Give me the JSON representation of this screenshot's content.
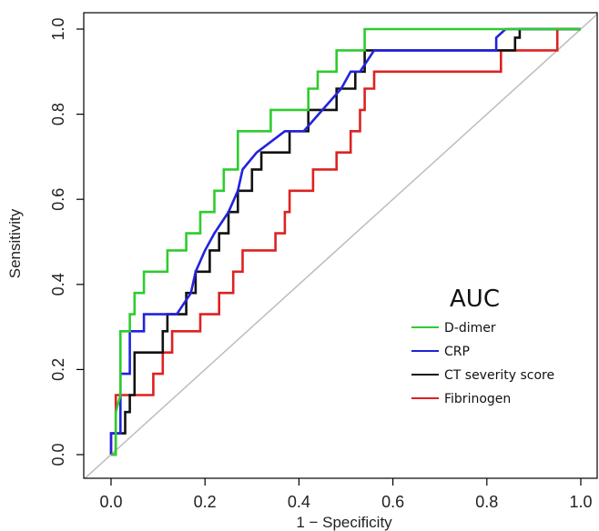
{
  "chart_data": {
    "type": "line",
    "title": "",
    "xlabel": "1 − Specificity",
    "ylabel": "Sensitivity",
    "xlim": [
      0.0,
      1.0
    ],
    "ylim": [
      0.0,
      1.0
    ],
    "x_ticks": [
      "0.0",
      "0.2",
      "0.4",
      "0.6",
      "0.8",
      "1.0"
    ],
    "y_ticks": [
      "0.0",
      "0.2",
      "0.4",
      "0.6",
      "0.8",
      "1.0"
    ],
    "grid": false,
    "legend_title": "AUC",
    "legend_position": "bottom-right",
    "reference_line": {
      "color": "#bdbdbd",
      "x": [
        0.0,
        1.0
      ],
      "y": [
        0.0,
        1.0
      ]
    },
    "series": [
      {
        "name": "D-dimer",
        "color": "#2ecc2e",
        "x": [
          0.0,
          0.01,
          0.01,
          0.02,
          0.02,
          0.04,
          0.04,
          0.05,
          0.05,
          0.07,
          0.07,
          0.12,
          0.12,
          0.16,
          0.16,
          0.19,
          0.19,
          0.22,
          0.22,
          0.24,
          0.24,
          0.27,
          0.27,
          0.34,
          0.34,
          0.42,
          0.42,
          0.44,
          0.44,
          0.48,
          0.48,
          0.54,
          0.54,
          1.0
        ],
        "y": [
          0.0,
          0.0,
          0.1,
          0.14,
          0.29,
          0.29,
          0.33,
          0.33,
          0.38,
          0.38,
          0.43,
          0.43,
          0.48,
          0.48,
          0.52,
          0.52,
          0.57,
          0.57,
          0.62,
          0.62,
          0.67,
          0.67,
          0.76,
          0.76,
          0.81,
          0.81,
          0.86,
          0.86,
          0.9,
          0.9,
          0.95,
          0.95,
          1.0,
          1.0
        ]
      },
      {
        "name": "CRP",
        "color": "#2222dd",
        "x": [
          0.0,
          0.0,
          0.02,
          0.02,
          0.04,
          0.04,
          0.07,
          0.07,
          0.14,
          0.17,
          0.18,
          0.2,
          0.22,
          0.25,
          0.27,
          0.28,
          0.31,
          0.37,
          0.41,
          0.45,
          0.49,
          0.51,
          0.53,
          0.56,
          0.82,
          0.82,
          0.84,
          1.0
        ],
        "y": [
          0.0,
          0.05,
          0.05,
          0.19,
          0.19,
          0.29,
          0.29,
          0.33,
          0.33,
          0.38,
          0.43,
          0.48,
          0.52,
          0.57,
          0.62,
          0.67,
          0.71,
          0.76,
          0.76,
          0.81,
          0.86,
          0.9,
          0.9,
          0.95,
          0.95,
          0.98,
          1.0,
          1.0
        ]
      },
      {
        "name": "CT severity score",
        "color": "#111111",
        "x": [
          0.0,
          0.01,
          0.01,
          0.02,
          0.02,
          0.03,
          0.03,
          0.04,
          0.04,
          0.05,
          0.05,
          0.11,
          0.11,
          0.12,
          0.12,
          0.16,
          0.16,
          0.18,
          0.18,
          0.21,
          0.21,
          0.23,
          0.23,
          0.25,
          0.25,
          0.27,
          0.27,
          0.3,
          0.3,
          0.32,
          0.32,
          0.34,
          0.34,
          0.38,
          0.38,
          0.42,
          0.42,
          0.48,
          0.48,
          0.52,
          0.52,
          0.54,
          0.54,
          0.86,
          0.86,
          0.87,
          0.87,
          1.0
        ],
        "y": [
          0.0,
          0.0,
          0.05,
          0.05,
          0.05,
          0.05,
          0.1,
          0.1,
          0.14,
          0.14,
          0.24,
          0.24,
          0.29,
          0.29,
          0.33,
          0.33,
          0.38,
          0.38,
          0.43,
          0.43,
          0.48,
          0.48,
          0.52,
          0.52,
          0.57,
          0.57,
          0.62,
          0.62,
          0.67,
          0.67,
          0.71,
          0.71,
          0.71,
          0.71,
          0.76,
          0.76,
          0.81,
          0.81,
          0.86,
          0.86,
          0.9,
          0.9,
          0.95,
          0.95,
          0.98,
          0.98,
          1.0,
          1.0
        ]
      },
      {
        "name": "Fibrinogen",
        "color": "#dd2222",
        "x": [
          0.0,
          0.0,
          0.01,
          0.01,
          0.09,
          0.09,
          0.11,
          0.11,
          0.13,
          0.13,
          0.19,
          0.19,
          0.23,
          0.23,
          0.26,
          0.26,
          0.28,
          0.28,
          0.3,
          0.3,
          0.35,
          0.35,
          0.37,
          0.37,
          0.38,
          0.38,
          0.41,
          0.41,
          0.43,
          0.43,
          0.48,
          0.48,
          0.51,
          0.51,
          0.53,
          0.53,
          0.54,
          0.54,
          0.56,
          0.56,
          0.83,
          0.83,
          0.95,
          0.95,
          1.0
        ],
        "y": [
          0.0,
          0.05,
          0.05,
          0.14,
          0.14,
          0.19,
          0.19,
          0.24,
          0.24,
          0.29,
          0.29,
          0.33,
          0.33,
          0.38,
          0.38,
          0.43,
          0.43,
          0.48,
          0.48,
          0.48,
          0.48,
          0.52,
          0.52,
          0.57,
          0.57,
          0.62,
          0.62,
          0.62,
          0.62,
          0.67,
          0.67,
          0.71,
          0.71,
          0.76,
          0.76,
          0.81,
          0.81,
          0.86,
          0.86,
          0.9,
          0.9,
          0.95,
          0.95,
          1.0,
          1.0
        ]
      }
    ]
  }
}
